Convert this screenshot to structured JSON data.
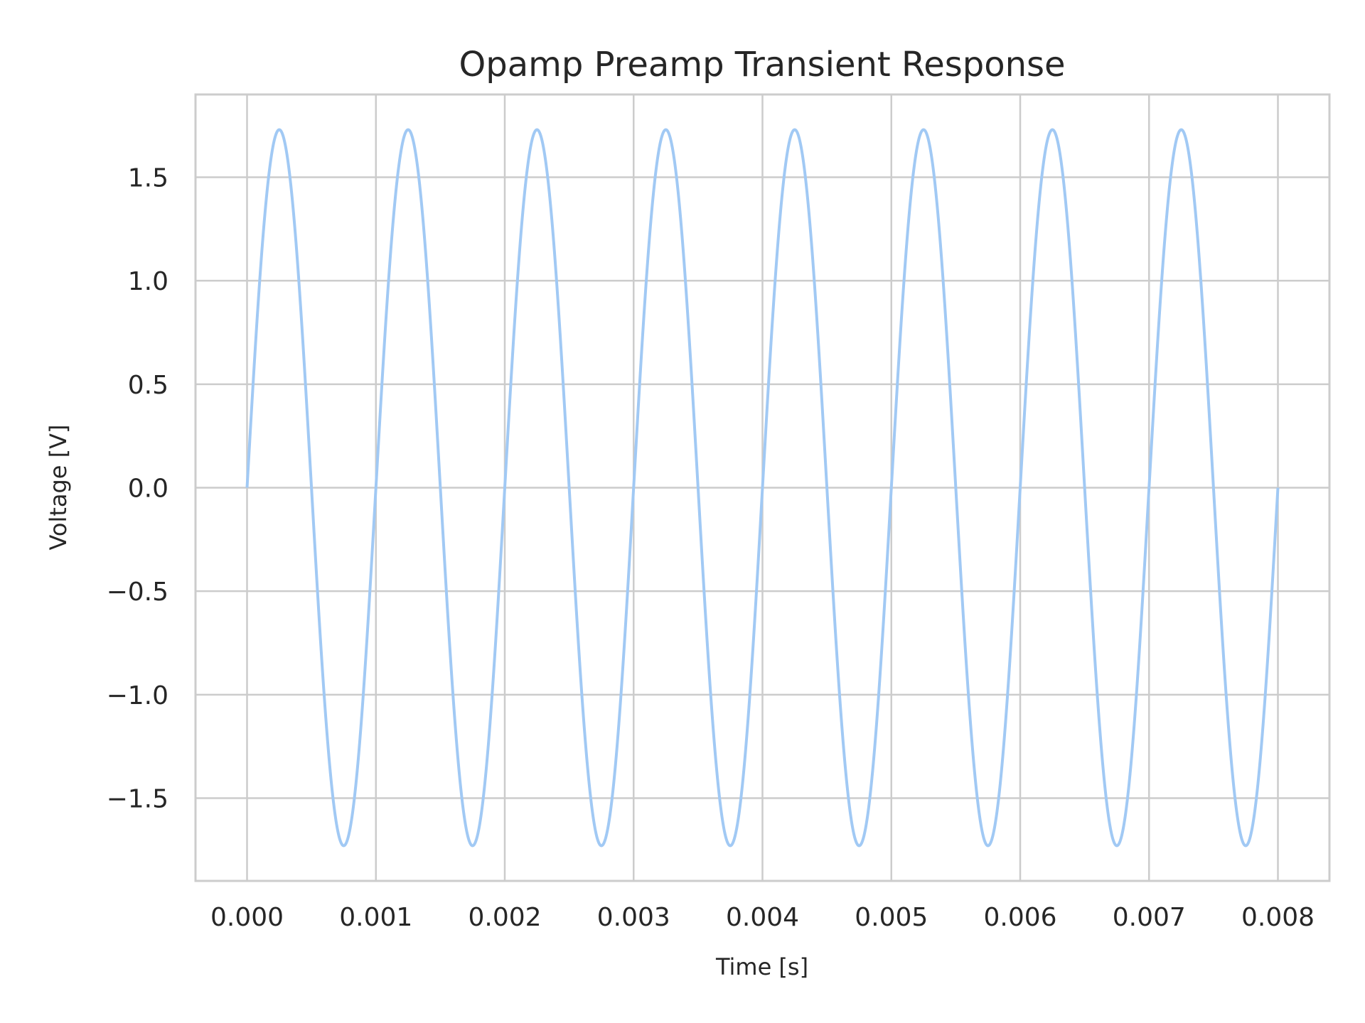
{
  "chart_data": {
    "type": "line",
    "title": "Opamp Preamp Transient Response",
    "xlabel": "Time [s]",
    "ylabel": "Voltage [V]",
    "xlim": [
      -0.0004,
      0.0084
    ],
    "ylim": [
      -1.9,
      1.9
    ],
    "x_ticks": [
      "0.000",
      "0.001",
      "0.002",
      "0.003",
      "0.004",
      "0.005",
      "0.006",
      "0.007",
      "0.008"
    ],
    "y_ticks": [
      "−1.5",
      "−1.0",
      "−0.5",
      "0.0",
      "0.5",
      "1.0",
      "1.5"
    ],
    "grid": true,
    "series": [
      {
        "color": "#a1c9f4",
        "function": "sine",
        "amplitude": 1.73,
        "frequency_hz": 1000,
        "x_start": 0.0,
        "x_end": 0.008
      }
    ]
  }
}
